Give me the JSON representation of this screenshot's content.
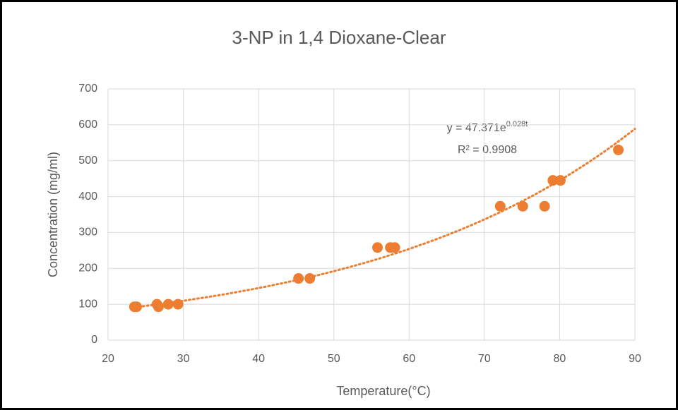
{
  "chart_data": {
    "type": "scatter",
    "title": "3-NP in 1,4 Dioxane-Clear",
    "x_label": "Temperature(°C)",
    "y_label": "Concentration (mg/ml)",
    "color": "#ed7d31",
    "grid": true,
    "xlim": [
      20,
      90
    ],
    "xticks": [
      20,
      30,
      40,
      50,
      60,
      70,
      80,
      90
    ],
    "ylim": [
      0,
      700
    ],
    "yticks": [
      0,
      100,
      200,
      300,
      400,
      500,
      600,
      700
    ],
    "x": [
      23.5,
      23.8,
      26.5,
      26.7,
      28.0,
      29.3,
      45.3,
      46.8,
      55.8,
      57.5,
      58.1,
      72.1,
      75.1,
      78.0,
      79.1,
      80.1,
      87.8
    ],
    "values": [
      93,
      93,
      100,
      93,
      100,
      100,
      172,
      172,
      258,
      258,
      258,
      373,
      373,
      373,
      445,
      445,
      530
    ],
    "trendline": {
      "coefficient": 47.371,
      "rate": 0.028,
      "equation_base": "y = 47.371e",
      "equation_exponent": "0.028t",
      "r_squared": "R² = 0.9908"
    }
  }
}
